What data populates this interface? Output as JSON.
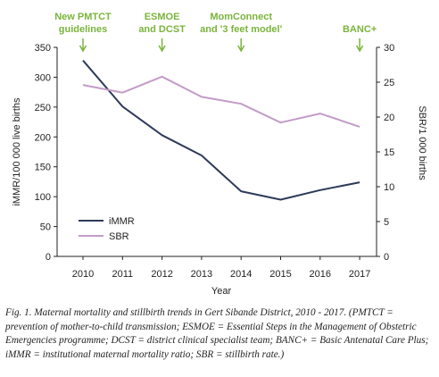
{
  "chart_data": {
    "type": "line",
    "x": [
      2010,
      2011,
      2012,
      2013,
      2014,
      2015,
      2016,
      2017
    ],
    "xlabel": "Year",
    "ylabel_left": "iMMR/100 000 live births",
    "ylabel_right": "SBR/1 000 births",
    "ylim_left": [
      0,
      350
    ],
    "ylim_right": [
      0,
      30
    ],
    "yticks_left": [
      0,
      50,
      100,
      150,
      200,
      250,
      300,
      350
    ],
    "yticks_right": [
      0,
      5,
      10,
      15,
      20,
      25,
      30
    ],
    "grid": false,
    "legend_position": "center-left",
    "series": [
      {
        "name": "iMMR",
        "axis": "left",
        "color": "#2e3a58",
        "values": [
          328,
          251,
          203,
          169,
          109,
          95,
          111,
          124
        ]
      },
      {
        "name": "SBR",
        "axis": "right",
        "color": "#c39bc8",
        "values": [
          24.6,
          23.5,
          25.8,
          22.9,
          21.9,
          19.2,
          20.5,
          18.6
        ]
      }
    ],
    "annotations": [
      {
        "x": 2010,
        "lines": [
          "New PMTCT",
          "guidelines"
        ]
      },
      {
        "x": 2012,
        "lines": [
          "ESMOE",
          "and DCST"
        ]
      },
      {
        "x": 2014,
        "lines": [
          "MomConnect",
          "and '3 feet model'"
        ]
      },
      {
        "x": 2017,
        "lines": [
          "BANC+"
        ]
      }
    ],
    "annotation_color": "#7ab43c",
    "axis_color": "#222222"
  },
  "caption": {
    "lead": "Fig. 1.",
    "text": "Maternal mortality and stillbirth trends in Gert Sibande District, 2010 - 2017. (PMTCT = prevention of mother-to-child transmission; ESMOE = Essential Steps in the Management of Obstetric Emergencies programme; DCST = district clinical specialist team; BANC+ = Basic Antenatal Care Plus; iMMR = institutional maternal mortality ratio; SBR = stillbirth rate.)"
  }
}
